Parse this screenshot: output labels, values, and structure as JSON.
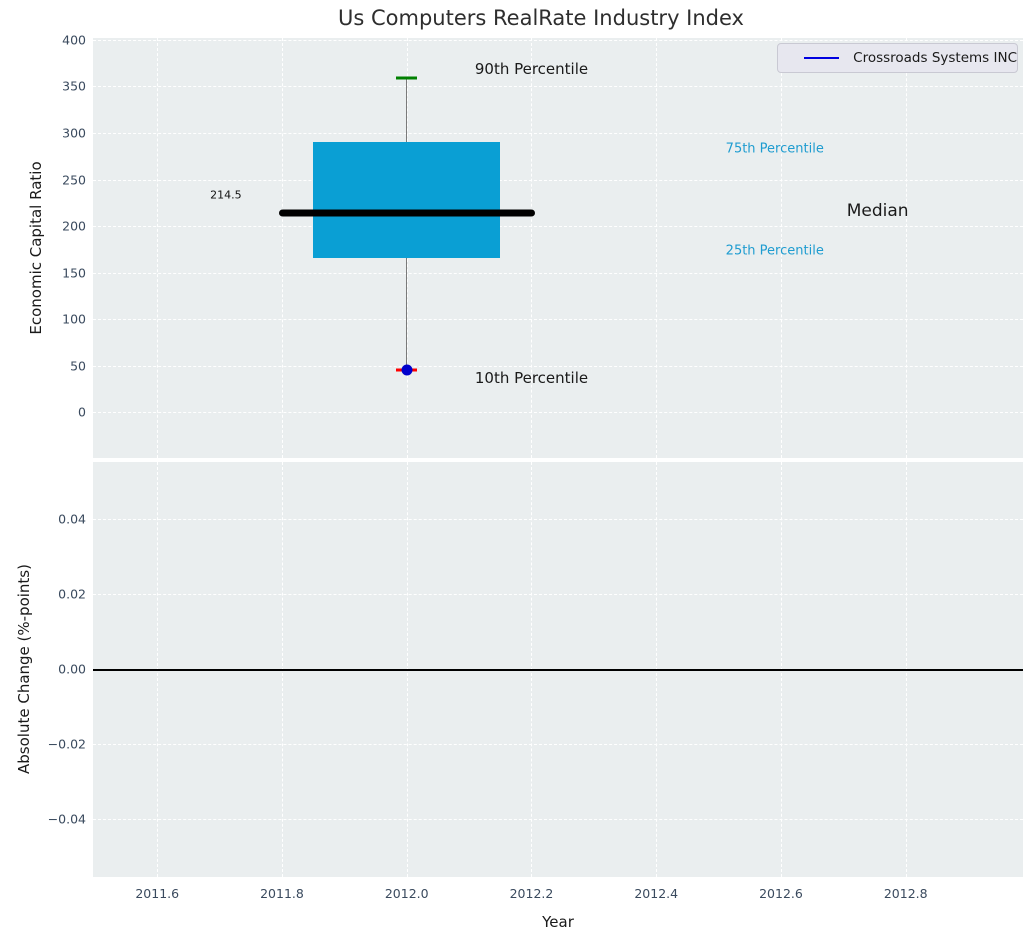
{
  "title": "Us Computers RealRate Industry Index",
  "legend": {
    "label": "Crossroads Systems INC",
    "line_color": "#0000e0"
  },
  "xaxis": {
    "label": "Year",
    "tick_labels": [
      "2011.6",
      "2011.8",
      "2012.0",
      "2012.2",
      "2012.4",
      "2012.6",
      "2012.8"
    ],
    "tick_values": [
      2011.6,
      2011.8,
      2012.0,
      2012.2,
      2012.4,
      2012.6,
      2012.8
    ],
    "xlim": [
      2011.497,
      2012.988
    ]
  },
  "colors": {
    "plot_bg": "#eaeeef",
    "grid": "#ffffff",
    "box_fill": "#0a9fd4",
    "median_line": "#000000",
    "whisker": "#7a7a7a",
    "cap_90": "#008000",
    "cap_10": "#ff0000",
    "marker": "#0000cc",
    "tick_label": "#3a4a5e",
    "percentile_text": "#1e9cd0",
    "text": "#1a1a1a"
  },
  "chart_data": [
    {
      "type": "boxplot",
      "ylabel": "Economic Capital Ratio",
      "ylim": [
        -49,
        402
      ],
      "grid": true,
      "legend_position": "upper right",
      "ytick_labels": [
        "400",
        "350",
        "300",
        "250",
        "200",
        "150",
        "100",
        "50",
        "0"
      ],
      "ytick_values": [
        400,
        350,
        300,
        250,
        200,
        150,
        100,
        50,
        0
      ],
      "series_name": "Crossroads Systems INC",
      "box": {
        "x": 2012.0,
        "p10": 46,
        "q1": 166,
        "median": 214.5,
        "q3": 290,
        "p90": 359,
        "box_halfwidth": 0.15,
        "median_halfwidth": 0.205,
        "cap_halfwidth": 0.017,
        "marker_value": 46
      },
      "annotations": [
        {
          "text": "90th Percentile",
          "x": 2012.2,
          "y": 369,
          "color": "#1a1a1a",
          "size": 15
        },
        {
          "text": "10th Percentile",
          "x": 2012.2,
          "y": 37,
          "color": "#1a1a1a",
          "size": 15
        },
        {
          "text": "75th Percentile",
          "x": 2012.59,
          "y": 283,
          "color": "#1e9cd0",
          "size": 13
        },
        {
          "text": "Median",
          "x": 2012.755,
          "y": 216,
          "color": "#1a1a1a",
          "size": 17
        },
        {
          "text": "25th Percentile",
          "x": 2012.59,
          "y": 173,
          "color": "#1e9cd0",
          "size": 13
        },
        {
          "text": "214.5",
          "x": 2011.71,
          "y": 233,
          "color": "#111111",
          "size": 11
        }
      ]
    },
    {
      "type": "line",
      "ylabel": "Absolute Change (%-points)",
      "ylim": [
        -0.0555,
        0.0552
      ],
      "grid": true,
      "ytick_labels": [
        "0.04",
        "0.02",
        "0.00",
        "−0.02",
        "−0.04"
      ],
      "ytick_values": [
        0.04,
        0.02,
        0.0,
        -0.02,
        -0.04
      ],
      "zero_line": true,
      "series": []
    }
  ]
}
